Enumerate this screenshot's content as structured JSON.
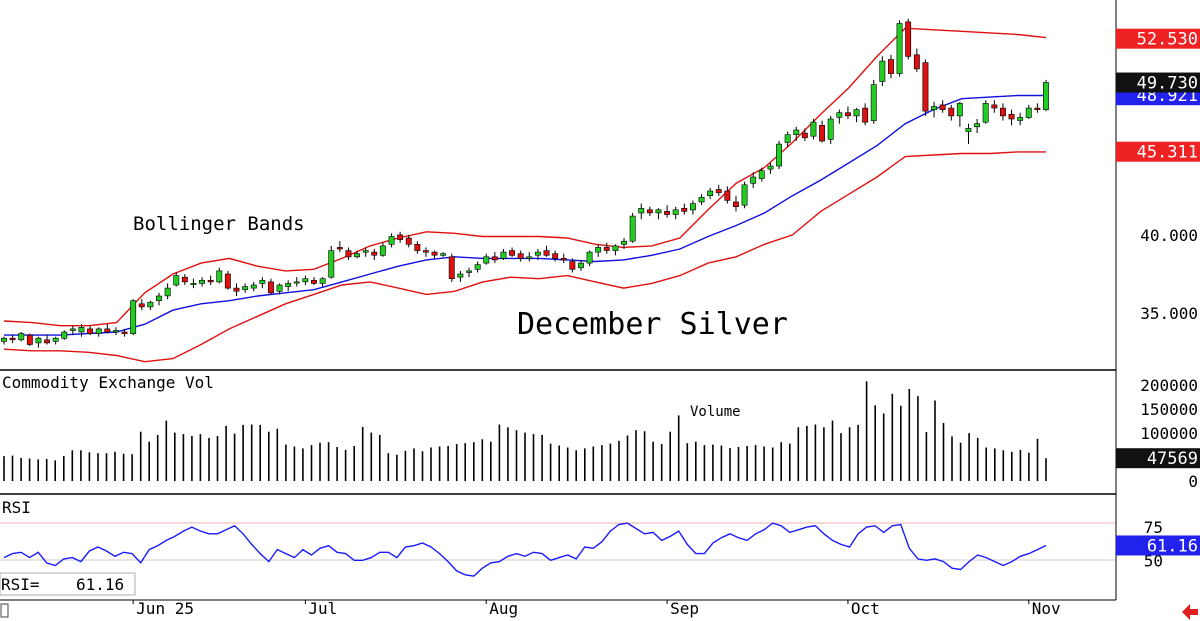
{
  "chart_data": [
    {
      "type": "candlestick",
      "title": "December Silver",
      "annotation": "Bollinger Bands",
      "y_ticks": [
        "40.000",
        "35.000"
      ],
      "ylim": [
        31.5,
        55.0
      ],
      "x_labels": [
        "Jun 25",
        "Jul",
        "Aug",
        "Sep",
        "Oct",
        "Nov"
      ],
      "price_tags": {
        "upper": "52.530",
        "last": "49.730",
        "middle": "48.921",
        "lower": "45.311"
      },
      "candles": [
        [
          33.2,
          33.5,
          33.0,
          33.4
        ],
        [
          33.4,
          33.6,
          33.1,
          33.3
        ],
        [
          33.3,
          33.8,
          33.2,
          33.7
        ],
        [
          33.6,
          33.7,
          32.9,
          33.0
        ],
        [
          33.1,
          33.5,
          32.8,
          33.4
        ],
        [
          33.3,
          33.6,
          33.0,
          33.1
        ],
        [
          33.2,
          33.5,
          33.0,
          33.4
        ],
        [
          33.4,
          33.9,
          33.3,
          33.8
        ],
        [
          33.9,
          34.2,
          33.6,
          34.0
        ],
        [
          33.8,
          34.3,
          33.5,
          34.1
        ],
        [
          34.0,
          34.2,
          33.6,
          33.7
        ],
        [
          33.7,
          34.1,
          33.5,
          34.0
        ],
        [
          34.0,
          34.3,
          33.7,
          33.8
        ],
        [
          33.8,
          34.1,
          33.6,
          33.9
        ],
        [
          33.8,
          34.0,
          33.5,
          33.7
        ],
        [
          33.7,
          35.9,
          33.6,
          35.8
        ],
        [
          35.6,
          35.9,
          35.2,
          35.4
        ],
        [
          35.4,
          35.8,
          35.2,
          35.7
        ],
        [
          35.8,
          36.3,
          35.5,
          36.1
        ],
        [
          36.1,
          36.9,
          35.9,
          36.6
        ],
        [
          36.8,
          37.6,
          36.7,
          37.4
        ],
        [
          37.3,
          37.5,
          36.8,
          37.0
        ],
        [
          36.9,
          37.2,
          36.6,
          36.9
        ],
        [
          36.9,
          37.3,
          36.7,
          37.1
        ],
        [
          37.1,
          37.4,
          36.8,
          37.0
        ],
        [
          37.0,
          37.9,
          36.9,
          37.7
        ],
        [
          37.5,
          37.7,
          36.5,
          36.6
        ],
        [
          36.6,
          36.9,
          36.1,
          36.4
        ],
        [
          36.5,
          36.9,
          36.3,
          36.7
        ],
        [
          36.6,
          37.0,
          36.4,
          36.8
        ],
        [
          36.9,
          37.3,
          36.6,
          37.1
        ],
        [
          37.0,
          37.2,
          36.2,
          36.3
        ],
        [
          36.4,
          36.9,
          36.2,
          36.8
        ],
        [
          36.7,
          37.1,
          36.4,
          36.9
        ],
        [
          37.0,
          37.3,
          36.7,
          37.0
        ],
        [
          37.0,
          37.4,
          36.8,
          37.2
        ],
        [
          37.1,
          37.3,
          36.8,
          36.9
        ],
        [
          36.9,
          37.3,
          36.7,
          37.2
        ],
        [
          37.3,
          39.3,
          37.2,
          39.0
        ],
        [
          39.2,
          39.6,
          38.9,
          39.1
        ],
        [
          39.0,
          39.2,
          38.4,
          38.6
        ],
        [
          38.6,
          39.0,
          38.5,
          38.8
        ],
        [
          38.9,
          39.2,
          38.6,
          39.0
        ],
        [
          38.9,
          39.1,
          38.4,
          38.7
        ],
        [
          38.7,
          39.5,
          38.6,
          39.3
        ],
        [
          39.4,
          40.1,
          39.2,
          39.9
        ],
        [
          40.0,
          40.2,
          39.5,
          39.7
        ],
        [
          39.8,
          40.0,
          39.2,
          39.4
        ],
        [
          39.4,
          39.6,
          38.8,
          39.0
        ],
        [
          39.0,
          39.2,
          38.6,
          38.9
        ],
        [
          38.9,
          39.0,
          38.5,
          38.7
        ],
        [
          38.7,
          38.9,
          38.6,
          38.8
        ],
        [
          38.6,
          38.8,
          37.0,
          37.2
        ],
        [
          37.3,
          37.7,
          37.0,
          37.5
        ],
        [
          37.6,
          37.9,
          37.3,
          37.7
        ],
        [
          37.8,
          38.3,
          37.6,
          38.1
        ],
        [
          38.2,
          38.8,
          38.1,
          38.6
        ],
        [
          38.6,
          38.9,
          38.2,
          38.4
        ],
        [
          38.5,
          39.1,
          38.4,
          38.9
        ],
        [
          39.0,
          39.2,
          38.6,
          38.7
        ],
        [
          38.8,
          39.0,
          38.3,
          38.5
        ],
        [
          38.5,
          38.9,
          38.3,
          38.6
        ],
        [
          38.7,
          39.1,
          38.4,
          38.9
        ],
        [
          39.0,
          39.3,
          38.6,
          38.7
        ],
        [
          38.8,
          39.0,
          38.3,
          38.5
        ],
        [
          38.5,
          38.8,
          38.2,
          38.4
        ],
        [
          38.3,
          38.5,
          37.6,
          37.8
        ],
        [
          37.9,
          38.4,
          37.7,
          38.2
        ],
        [
          38.2,
          39.0,
          38.0,
          38.9
        ],
        [
          38.9,
          39.4,
          38.6,
          39.2
        ],
        [
          39.2,
          39.5,
          38.8,
          39.0
        ],
        [
          39.0,
          39.4,
          38.7,
          39.3
        ],
        [
          39.4,
          39.8,
          39.1,
          39.6
        ],
        [
          39.6,
          41.4,
          39.5,
          41.2
        ],
        [
          41.4,
          42.0,
          41.0,
          41.7
        ],
        [
          41.6,
          41.8,
          41.2,
          41.4
        ],
        [
          41.4,
          41.7,
          41.0,
          41.6
        ],
        [
          41.5,
          41.9,
          41.1,
          41.3
        ],
        [
          41.3,
          41.8,
          41.0,
          41.6
        ],
        [
          41.7,
          42.0,
          41.3,
          41.5
        ],
        [
          41.6,
          42.2,
          41.3,
          42.0
        ],
        [
          42.1,
          42.6,
          41.9,
          42.4
        ],
        [
          42.5,
          43.0,
          42.3,
          42.8
        ],
        [
          42.9,
          43.2,
          42.5,
          42.7
        ],
        [
          42.8,
          43.1,
          42.0,
          42.2
        ],
        [
          42.1,
          42.5,
          41.5,
          41.8
        ],
        [
          41.9,
          43.4,
          41.7,
          43.2
        ],
        [
          43.3,
          44.0,
          43.0,
          43.7
        ],
        [
          43.6,
          44.3,
          43.4,
          44.1
        ],
        [
          44.2,
          44.6,
          43.9,
          44.4
        ],
        [
          44.4,
          46.0,
          44.2,
          45.8
        ],
        [
          45.9,
          46.6,
          45.6,
          46.4
        ],
        [
          46.4,
          46.9,
          46.0,
          46.7
        ],
        [
          46.5,
          46.8,
          46.0,
          46.2
        ],
        [
          46.3,
          47.4,
          46.1,
          47.2
        ],
        [
          47.0,
          47.3,
          45.9,
          46.0
        ],
        [
          46.1,
          47.6,
          45.8,
          47.4
        ],
        [
          47.5,
          48.0,
          47.1,
          47.8
        ],
        [
          47.8,
          48.2,
          47.4,
          47.6
        ],
        [
          47.6,
          48.1,
          47.2,
          48.0
        ],
        [
          48.1,
          48.4,
          47.0,
          47.2
        ],
        [
          47.3,
          49.9,
          47.1,
          49.6
        ],
        [
          49.8,
          51.4,
          49.5,
          51.1
        ],
        [
          51.2,
          51.5,
          50.0,
          50.3
        ],
        [
          50.3,
          53.7,
          50.1,
          53.5
        ],
        [
          53.6,
          53.8,
          51.2,
          51.4
        ],
        [
          51.5,
          51.9,
          50.4,
          50.6
        ],
        [
          51.0,
          51.2,
          47.6,
          47.9
        ],
        [
          48.0,
          48.5,
          47.5,
          48.2
        ],
        [
          48.3,
          48.6,
          47.8,
          48.0
        ],
        [
          48.1,
          48.3,
          47.3,
          47.6
        ],
        [
          47.6,
          48.5,
          46.9,
          48.4
        ],
        [
          46.6,
          47.1,
          45.8,
          46.8
        ],
        [
          46.9,
          47.4,
          46.5,
          47.1
        ],
        [
          47.2,
          48.6,
          47.1,
          48.4
        ],
        [
          48.3,
          48.6,
          47.8,
          48.1
        ],
        [
          48.1,
          48.4,
          47.3,
          47.6
        ],
        [
          47.7,
          48.0,
          47.0,
          47.4
        ],
        [
          47.3,
          47.8,
          47.0,
          47.5
        ],
        [
          47.5,
          48.3,
          47.4,
          48.1
        ],
        [
          48.1,
          48.4,
          47.8,
          48.0
        ],
        [
          48.0,
          49.9,
          47.9,
          49.73
        ]
      ],
      "bands": {
        "upper": [
          34.5,
          34.4,
          34.2,
          34.2,
          34.4,
          36.3,
          37.5,
          38.2,
          38.5,
          38.0,
          37.7,
          37.8,
          38.5,
          39.3,
          39.8,
          40.2,
          40.1,
          39.9,
          39.9,
          39.9,
          39.8,
          39.4,
          39.2,
          39.3,
          39.8,
          41.6,
          43.3,
          44.3,
          45.9,
          47.7,
          49.4,
          51.4,
          53.2,
          53.1,
          53.0,
          52.9,
          52.8,
          52.6
        ],
        "middle": [
          33.6,
          33.6,
          33.6,
          33.7,
          33.8,
          34.3,
          35.2,
          35.6,
          35.8,
          36.1,
          36.3,
          36.5,
          37.0,
          37.5,
          38.0,
          38.4,
          38.6,
          38.5,
          38.5,
          38.5,
          38.4,
          38.3,
          38.4,
          38.7,
          39.1,
          39.9,
          40.6,
          41.4,
          42.5,
          43.5,
          44.6,
          45.7,
          47.1,
          48.0,
          48.7,
          48.8,
          48.9,
          48.9
        ],
        "lower": [
          32.7,
          32.6,
          32.6,
          32.5,
          32.3,
          31.9,
          32.1,
          33.0,
          34.0,
          34.8,
          35.6,
          36.2,
          36.8,
          37.0,
          36.6,
          36.2,
          36.4,
          37.0,
          37.3,
          37.2,
          37.4,
          37.0,
          36.6,
          36.9,
          37.4,
          38.2,
          38.6,
          39.4,
          40.0,
          41.5,
          42.6,
          43.7,
          45.0,
          45.1,
          45.2,
          45.2,
          45.3,
          45.3
        ]
      }
    },
    {
      "type": "bar",
      "title": "Commodity Exchange Vol",
      "annotation": "Volume",
      "y_ticks": [
        "200000",
        "150000",
        "100000",
        "0"
      ],
      "ylim": [
        0,
        215000
      ],
      "last_value": "47569",
      "values": [
        52000,
        53000,
        48000,
        47000,
        45000,
        46000,
        43000,
        52000,
        64000,
        64000,
        60000,
        58000,
        58000,
        61000,
        57000,
        56000,
        103000,
        82000,
        96000,
        126000,
        101000,
        98000,
        94000,
        98000,
        90000,
        94000,
        115000,
        99000,
        117000,
        118000,
        117000,
        103000,
        109000,
        76000,
        72000,
        68000,
        75000,
        80000,
        81000,
        71000,
        65000,
        73000,
        113000,
        101000,
        96000,
        58000,
        55000,
        63000,
        68000,
        62000,
        70000,
        72000,
        73000,
        77000,
        79000,
        81000,
        87000,
        82000,
        118000,
        112000,
        106000,
        101000,
        98000,
        96000,
        78000,
        74000,
        70000,
        64000,
        68000,
        72000,
        75000,
        78000,
        84000,
        95000,
        106000,
        104000,
        82000,
        77000,
        103000,
        137000,
        79000,
        82000,
        75000,
        76000,
        74000,
        69000,
        71000,
        73000,
        75000,
        72000,
        70000,
        81000,
        78000,
        112000,
        115000,
        118000,
        112000,
        126000,
        100000,
        112000,
        117000,
        208000,
        158000,
        141000,
        182000,
        157000,
        192000,
        177000,
        102000,
        168000,
        121000,
        93000,
        80000,
        100000,
        90000,
        70000,
        68000,
        64000,
        61000,
        65000,
        59000,
        88000,
        47569
      ]
    },
    {
      "type": "line",
      "title": "RSI",
      "y_ticks": [
        "75",
        "50"
      ],
      "ylim": [
        20,
        100
      ],
      "readout_label": "RSI=",
      "readout_value": "61.16",
      "last_value": "61.16",
      "values": [
        52,
        55,
        56,
        52,
        56,
        48,
        46,
        51,
        52,
        49,
        57,
        60,
        57,
        53,
        56,
        55,
        48,
        58,
        61,
        65,
        68,
        72,
        75,
        72,
        70,
        70,
        73,
        76,
        70,
        62,
        55,
        49,
        58,
        55,
        52,
        58,
        54,
        59,
        61,
        56,
        55,
        50,
        50,
        52,
        56,
        56,
        52,
        60,
        61,
        63,
        60,
        55,
        49,
        42,
        39,
        38,
        44,
        48,
        49,
        53,
        55,
        53,
        56,
        55,
        50,
        52,
        54,
        51,
        60,
        59,
        64,
        72,
        77,
        78,
        74,
        70,
        71,
        65,
        68,
        72,
        62,
        55,
        55,
        63,
        67,
        70,
        67,
        65,
        70,
        73,
        78,
        76,
        71,
        73,
        75,
        76,
        70,
        65,
        62,
        60,
        70,
        75,
        76,
        71,
        76,
        77,
        59,
        51,
        50,
        51,
        49,
        44,
        43,
        49,
        54,
        52,
        49,
        46,
        49,
        53,
        55,
        58,
        61.16
      ]
    }
  ]
}
